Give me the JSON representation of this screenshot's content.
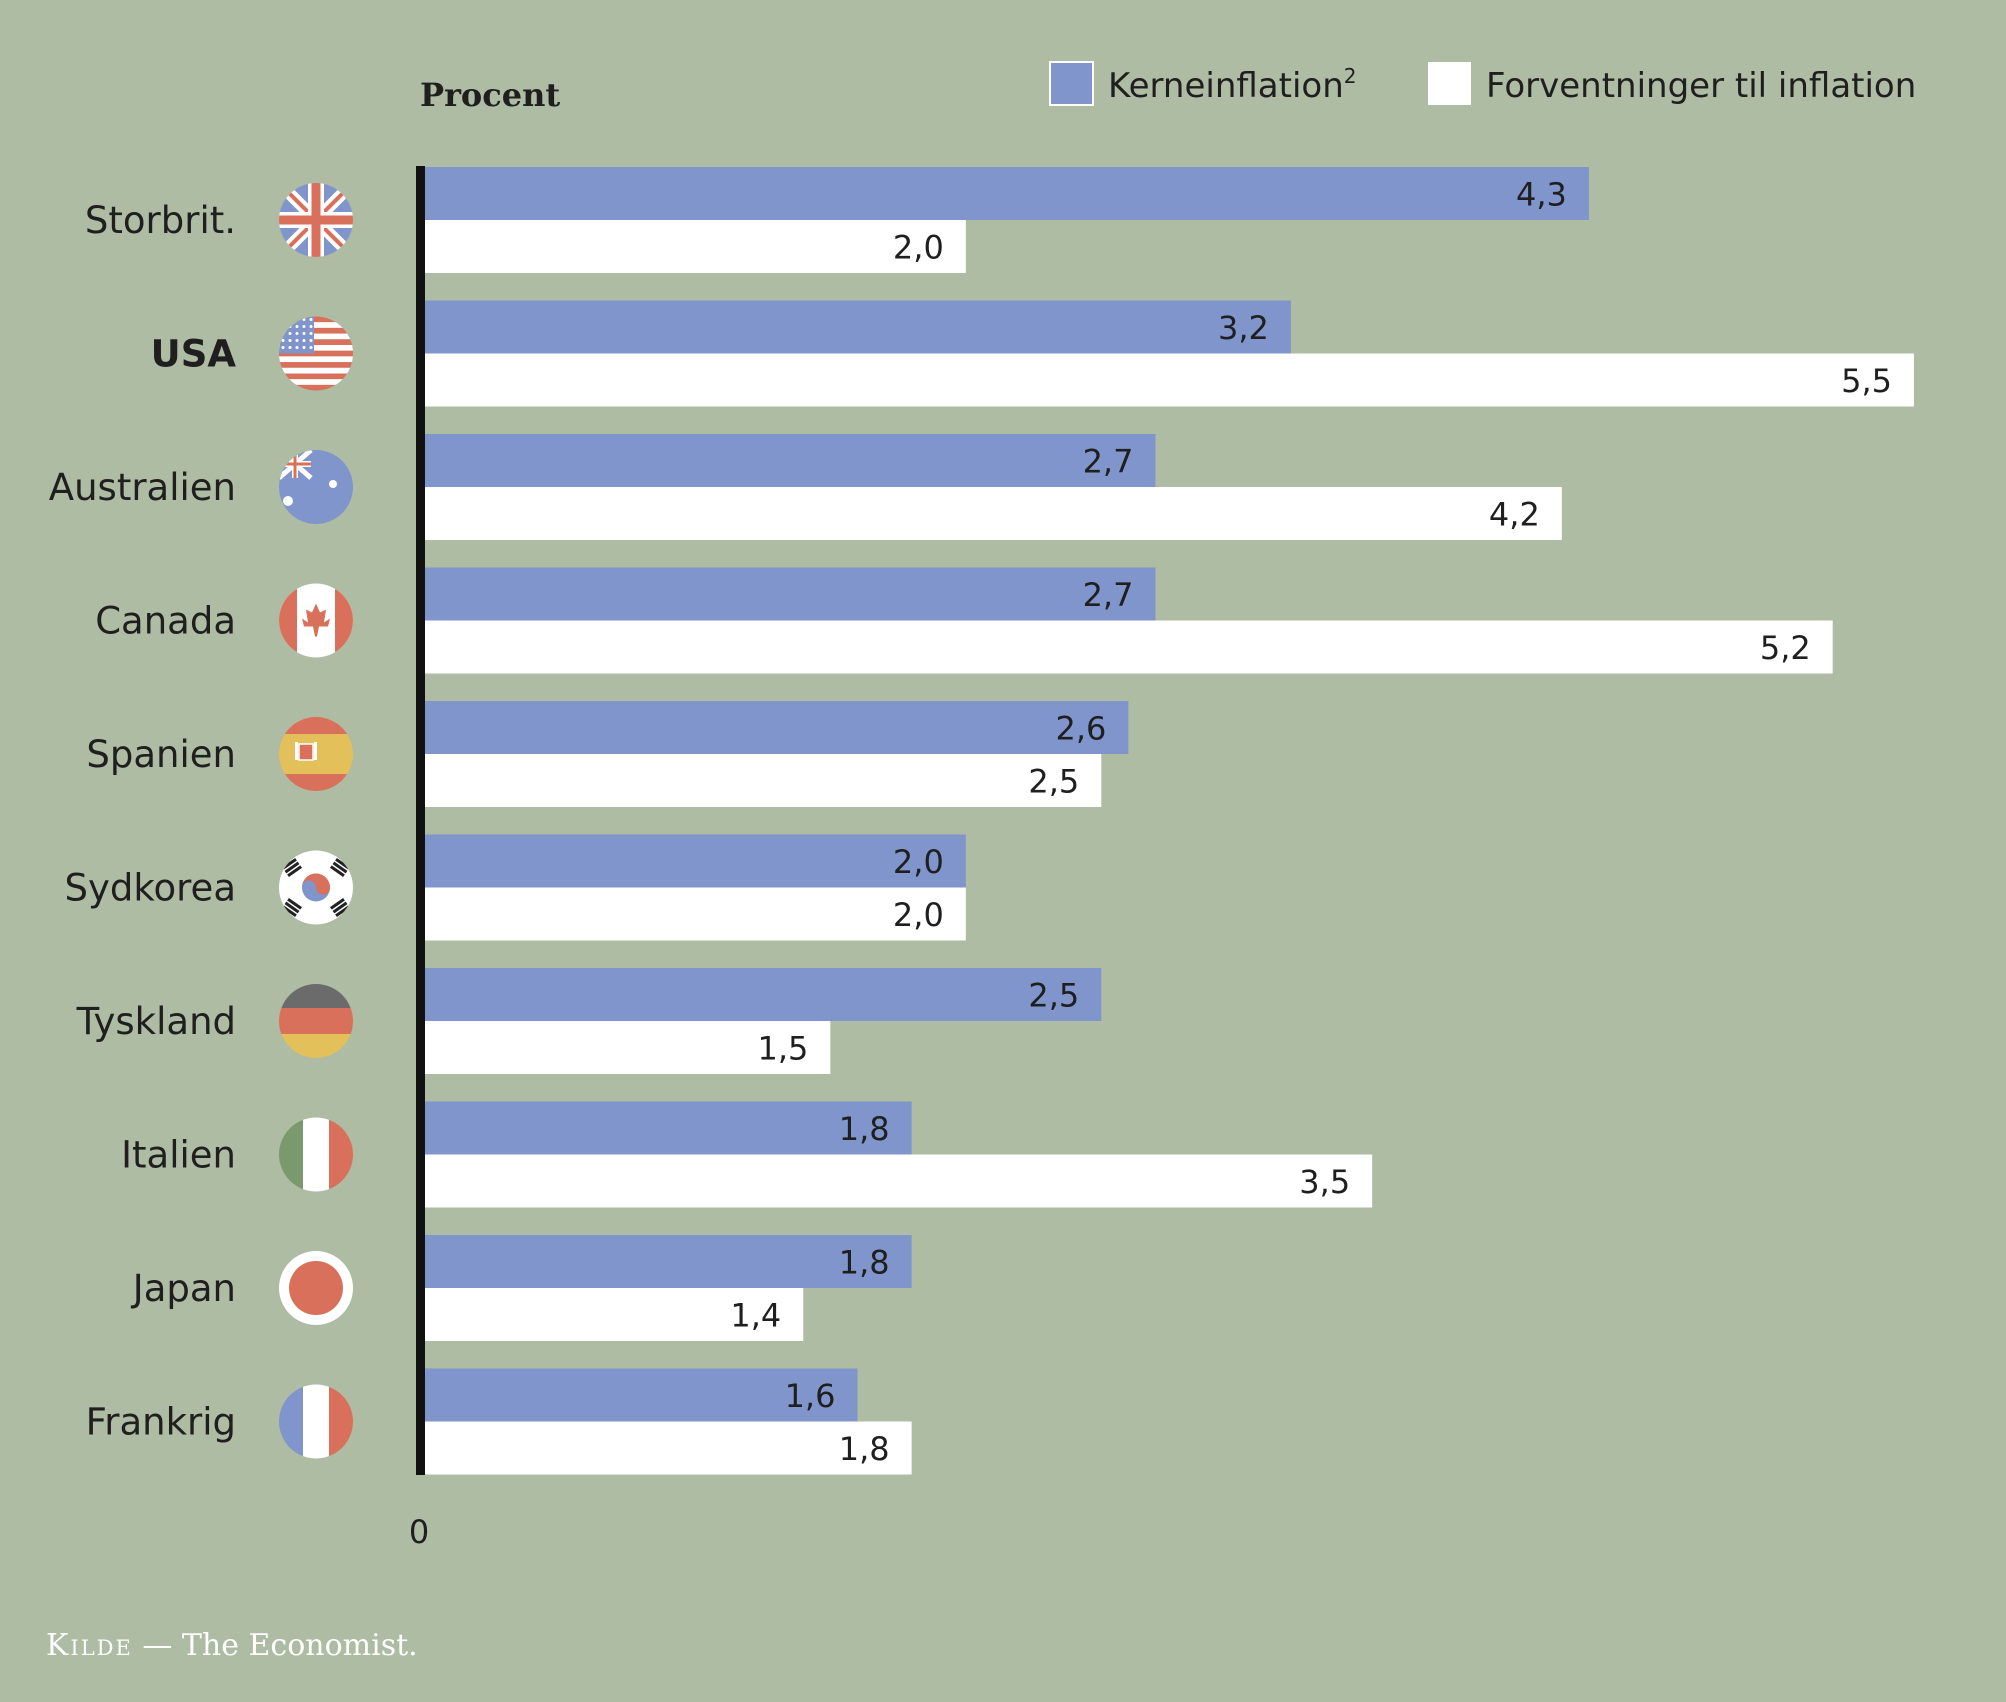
{
  "chart_data": {
    "type": "bar",
    "orientation": "horizontal",
    "ylabel": "Procent",
    "categories": [
      "Storbrit.",
      "USA",
      "Australien",
      "Canada",
      "Spanien",
      "Sydkorea",
      "Tyskland",
      "Italien",
      "Japan",
      "Frankrig"
    ],
    "highlighted_category": "USA",
    "series": [
      {
        "name": "Kerneinflation",
        "name_superscript": "2",
        "color": "#7f95cb",
        "values": [
          4.3,
          3.2,
          2.7,
          2.7,
          2.6,
          2.0,
          2.5,
          1.8,
          1.8,
          1.6
        ],
        "labels": [
          "4,3",
          "3,2",
          "2,7",
          "2,7",
          "2,6",
          "2,0",
          "2,5",
          "1,8",
          "1,8",
          "1,6"
        ]
      },
      {
        "name": "Forventninger til inflation",
        "color": "#ffffff",
        "values": [
          2.0,
          5.5,
          4.2,
          5.2,
          2.5,
          2.0,
          1.5,
          3.5,
          1.4,
          1.8
        ],
        "labels": [
          "2,0",
          "5,5",
          "4,2",
          "5,2",
          "2,5",
          "2,0",
          "1,5",
          "3,5",
          "1,4",
          "1,8"
        ]
      }
    ],
    "xlim": [
      0,
      5.5
    ],
    "x_tick_label": "0",
    "legend_position": "top-right",
    "grid": false
  },
  "flags": [
    "uk-flag-icon",
    "us-flag-icon",
    "australia-flag-icon",
    "canada-flag-icon",
    "spain-flag-icon",
    "south-korea-flag-icon",
    "germany-flag-icon",
    "italy-flag-icon",
    "japan-flag-icon",
    "france-flag-icon"
  ],
  "source": {
    "label": "Kilde",
    "text": "— The Economist."
  },
  "colors": {
    "background": "#adbca3",
    "axis": "#111111",
    "text": "#1f1f1f"
  }
}
